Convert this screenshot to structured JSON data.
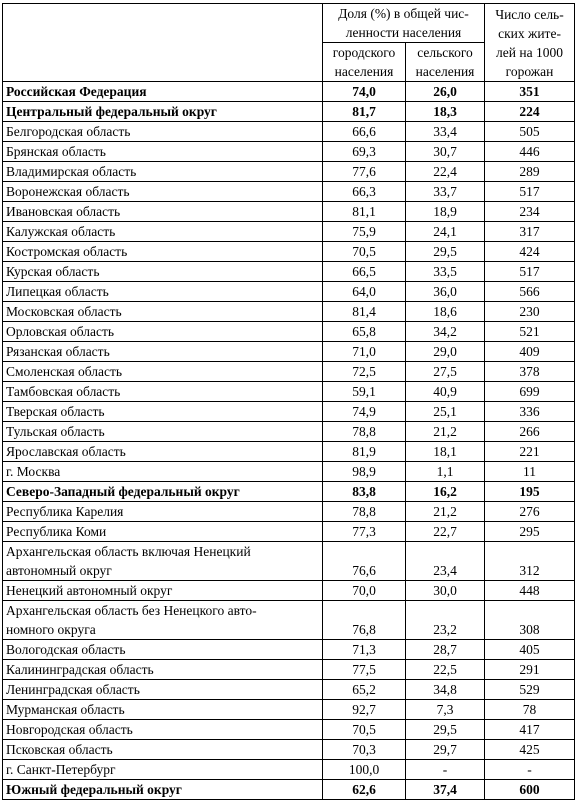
{
  "table": {
    "header": {
      "share": [
        "Доля (%) в общей чис-",
        "ленности населения"
      ],
      "urban": [
        "городского",
        "населения"
      ],
      "rural": [
        "сельского",
        "населения"
      ],
      "per1000": [
        "Число сель-",
        "ских жите-",
        "лей на 1000",
        "горожан"
      ]
    },
    "rows": [
      {
        "label": [
          "Российская Федерация"
        ],
        "values": [
          "74,0",
          "26,0",
          "351"
        ],
        "bold": true
      },
      {
        "label": [
          "Центральный федеральный округ"
        ],
        "values": [
          "81,7",
          "18,3",
          "224"
        ],
        "bold": true
      },
      {
        "label": [
          "Белгородская область"
        ],
        "values": [
          "66,6",
          "33,4",
          "505"
        ]
      },
      {
        "label": [
          "Брянская область"
        ],
        "values": [
          "69,3",
          "30,7",
          "446"
        ]
      },
      {
        "label": [
          "Владимирская область"
        ],
        "values": [
          "77,6",
          "22,4",
          "289"
        ]
      },
      {
        "label": [
          "Воронежская область"
        ],
        "values": [
          "66,3",
          "33,7",
          "517"
        ]
      },
      {
        "label": [
          "Ивановская область"
        ],
        "values": [
          "81,1",
          "18,9",
          "234"
        ]
      },
      {
        "label": [
          "Калужская область"
        ],
        "values": [
          "75,9",
          "24,1",
          "317"
        ]
      },
      {
        "label": [
          "Костромская область"
        ],
        "values": [
          "70,5",
          "29,5",
          "424"
        ]
      },
      {
        "label": [
          "Курская область"
        ],
        "values": [
          "66,5",
          "33,5",
          "517"
        ]
      },
      {
        "label": [
          "Липецкая область"
        ],
        "values": [
          "64,0",
          "36,0",
          "566"
        ]
      },
      {
        "label": [
          "Московская область"
        ],
        "values": [
          "81,4",
          "18,6",
          "230"
        ]
      },
      {
        "label": [
          "Орловская область"
        ],
        "values": [
          "65,8",
          "34,2",
          "521"
        ]
      },
      {
        "label": [
          "Рязанская область"
        ],
        "values": [
          "71,0",
          "29,0",
          "409"
        ]
      },
      {
        "label": [
          "Смоленская область"
        ],
        "values": [
          "72,5",
          "27,5",
          "378"
        ]
      },
      {
        "label": [
          "Тамбовская область"
        ],
        "values": [
          "59,1",
          "40,9",
          "699"
        ]
      },
      {
        "label": [
          "Тверская область"
        ],
        "values": [
          "74,9",
          "25,1",
          "336"
        ]
      },
      {
        "label": [
          "Тульская область"
        ],
        "values": [
          "78,8",
          "21,2",
          "266"
        ]
      },
      {
        "label": [
          "Ярославская область"
        ],
        "values": [
          "81,9",
          "18,1",
          "221"
        ]
      },
      {
        "label": [
          "г. Москва"
        ],
        "values": [
          "98,9",
          "1,1",
          "11"
        ]
      },
      {
        "label": [
          "Северо-Западный федеральный округ"
        ],
        "values": [
          "83,8",
          "16,2",
          "195"
        ],
        "bold": true
      },
      {
        "label": [
          "Республика Карелия"
        ],
        "values": [
          "78,8",
          "21,2",
          "276"
        ]
      },
      {
        "label": [
          "Республика Коми"
        ],
        "values": [
          "77,3",
          "22,7",
          "295"
        ]
      },
      {
        "label": [
          "Архангельская область включая Ненецкий",
          "автономный округ"
        ],
        "values": [
          "76,6",
          "23,4",
          "312"
        ]
      },
      {
        "label": [
          "Ненецкий автономный округ"
        ],
        "values": [
          "70,0",
          "30,0",
          "448"
        ]
      },
      {
        "label": [
          "Архангельская область без Ненецкого авто-",
          "номного округа"
        ],
        "values": [
          "76,8",
          "23,2",
          "308"
        ]
      },
      {
        "label": [
          "Вологодская область"
        ],
        "values": [
          "71,3",
          "28,7",
          "405"
        ]
      },
      {
        "label": [
          "Калининградская область"
        ],
        "values": [
          "77,5",
          "22,5",
          "291"
        ]
      },
      {
        "label": [
          "Ленинградская область"
        ],
        "values": [
          "65,2",
          "34,8",
          "529"
        ]
      },
      {
        "label": [
          "Мурманская область"
        ],
        "values": [
          "92,7",
          "7,3",
          "78"
        ]
      },
      {
        "label": [
          "Новгородская область"
        ],
        "values": [
          "70,5",
          "29,5",
          "417"
        ]
      },
      {
        "label": [
          "Псковская область"
        ],
        "values": [
          "70,3",
          "29,7",
          "425"
        ]
      },
      {
        "label": [
          "г. Санкт-Петербург"
        ],
        "values": [
          "100,0",
          "-",
          "-"
        ]
      },
      {
        "label": [
          "Южный федеральный округ"
        ],
        "values": [
          "62,6",
          "37,4",
          "600"
        ],
        "bold": true
      }
    ]
  }
}
